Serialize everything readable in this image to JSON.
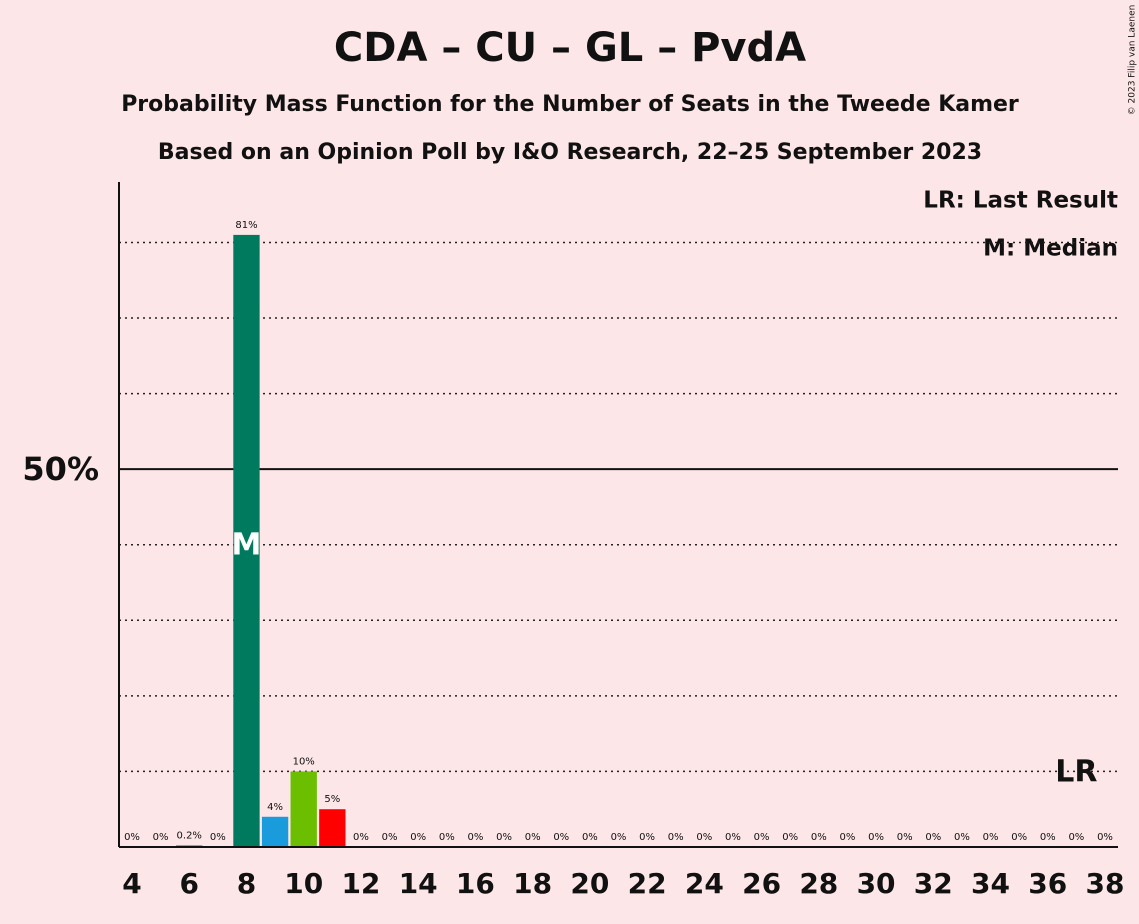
{
  "chart_data": {
    "type": "bar",
    "title": "CDA – CU – GL – PvdA",
    "subtitle": "Probability Mass Function for the Number of Seats in the Tweede Kamer",
    "subtitle2": "Based on an Opinion Poll by I&O Research, 22–25 September 2023",
    "copyright": "© 2023 Filip van Laenen",
    "categories": [
      4,
      null,
      6,
      null,
      8,
      null,
      10,
      null,
      12,
      null,
      14,
      null,
      16,
      null,
      18,
      null,
      20,
      null,
      22,
      null,
      24,
      null,
      26,
      null,
      28,
      null,
      30,
      null,
      32,
      null,
      34,
      null,
      36,
      null,
      38
    ],
    "values": [
      0,
      0,
      0.2,
      0,
      81,
      4,
      10,
      5,
      0,
      0,
      0,
      0,
      0,
      0,
      0,
      0,
      0,
      0,
      0,
      0,
      0,
      0,
      0,
      0,
      0,
      0,
      0,
      0,
      0,
      0,
      0,
      0,
      0,
      0,
      0
    ],
    "value_labels": [
      "0%",
      "0%",
      "0.2%",
      "0%",
      "81%",
      "4%",
      "10%",
      "5%",
      "0%",
      "0%",
      "0%",
      "0%",
      "0%",
      "0%",
      "0%",
      "0%",
      "0%",
      "0%",
      "0%",
      "0%",
      "0%",
      "0%",
      "0%",
      "0%",
      "0%",
      "0%",
      "0%",
      "0%",
      "0%",
      "0%",
      "0%",
      "0%",
      "0%",
      "0%",
      "0%"
    ],
    "colors": [
      "#007a5e",
      "#007a5e",
      "#007a5e",
      "#007a5e",
      "#007a5e",
      "#1a9bdb",
      "#6cbe00",
      "#ff0000",
      "#007a5e",
      "#007a5e",
      "#007a5e",
      "#007a5e",
      "#007a5e",
      "#007a5e",
      "#007a5e",
      "#007a5e",
      "#007a5e",
      "#007a5e",
      "#007a5e",
      "#007a5e",
      "#007a5e",
      "#007a5e",
      "#007a5e",
      "#007a5e",
      "#007a5e",
      "#007a5e",
      "#007a5e",
      "#007a5e",
      "#007a5e",
      "#007a5e",
      "#007a5e",
      "#007a5e",
      "#007a5e",
      "#007a5e",
      "#007a5e"
    ],
    "xlim": [
      4,
      38
    ],
    "ylim": [
      0,
      88
    ],
    "yticks": [
      {
        "value": 50,
        "label": "50%"
      }
    ],
    "minor_gridlines": [
      10,
      20,
      30,
      40,
      60,
      70,
      80
    ],
    "median": {
      "label": "M",
      "x": 8
    },
    "last_result": {
      "label": "LR",
      "x": 37
    },
    "legend": [
      "LR: Last Result",
      "M: Median"
    ]
  }
}
